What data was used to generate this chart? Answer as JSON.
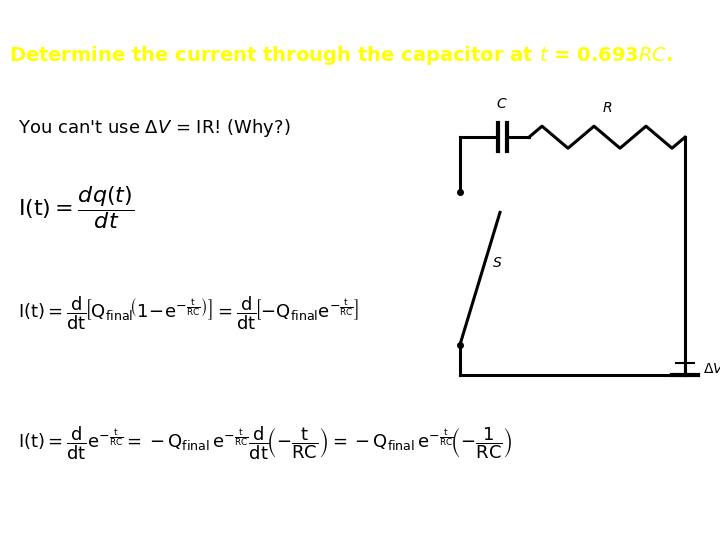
{
  "header_bg": "#3a8a1a",
  "header_text_white_color": "#ffffff",
  "header_text_yellow_color": "#ffff00",
  "body_bg": "#ffffff",
  "body_text_color": "#000000",
  "header_fontsize": 14,
  "body_fontsize": 13
}
